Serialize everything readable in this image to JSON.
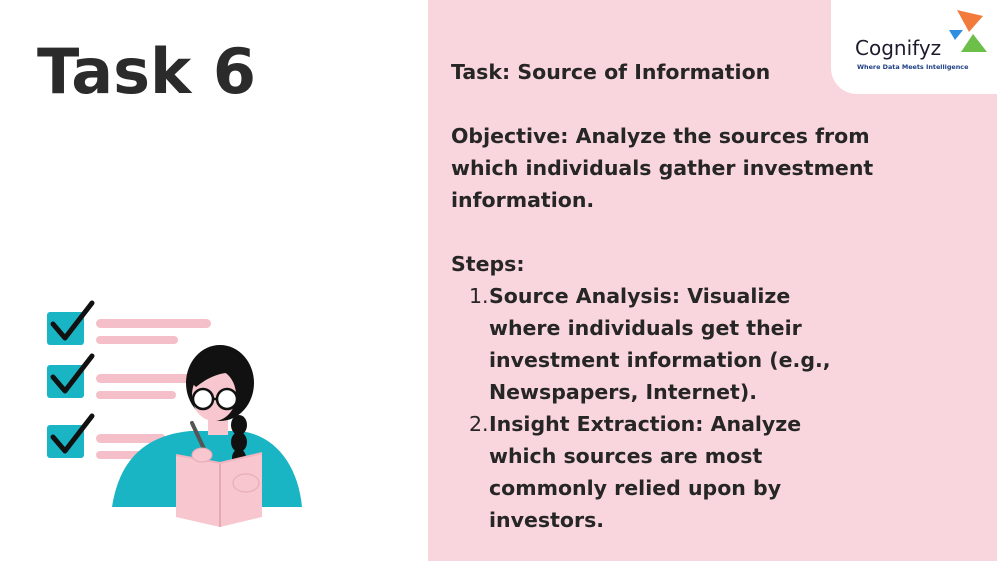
{
  "slide": {
    "title": "Task 6",
    "task_line": "Task: Source of Information",
    "objective": "Objective: Analyze the sources from which individuals gather investment information.",
    "steps_heading": "Steps:",
    "steps": [
      {
        "number": "1.",
        "text": "Source Analysis: Visualize where individuals get their investment information (e.g., Newspapers, Internet)."
      },
      {
        "number": "2.",
        "text": "Insight Extraction: Analyze which sources are most commonly relied upon by investors."
      }
    ]
  },
  "logo": {
    "name": "Cognifyz",
    "tagline": "Where Data Meets Intelligence"
  },
  "colors": {
    "right_panel_bg": "#f9d6dd",
    "checkbox": "#19b5c4",
    "list_line": "#f4bfc8",
    "shirt": "#19b5c4",
    "book": "#f7c6cf",
    "logo_orange": "#f27b3c",
    "logo_blue": "#2e8fe0",
    "logo_green": "#6cc04a"
  },
  "icons": [
    "checkbox-checked-icon",
    "reading-person-illustration",
    "cognifyz-logo-mark-icon"
  ]
}
